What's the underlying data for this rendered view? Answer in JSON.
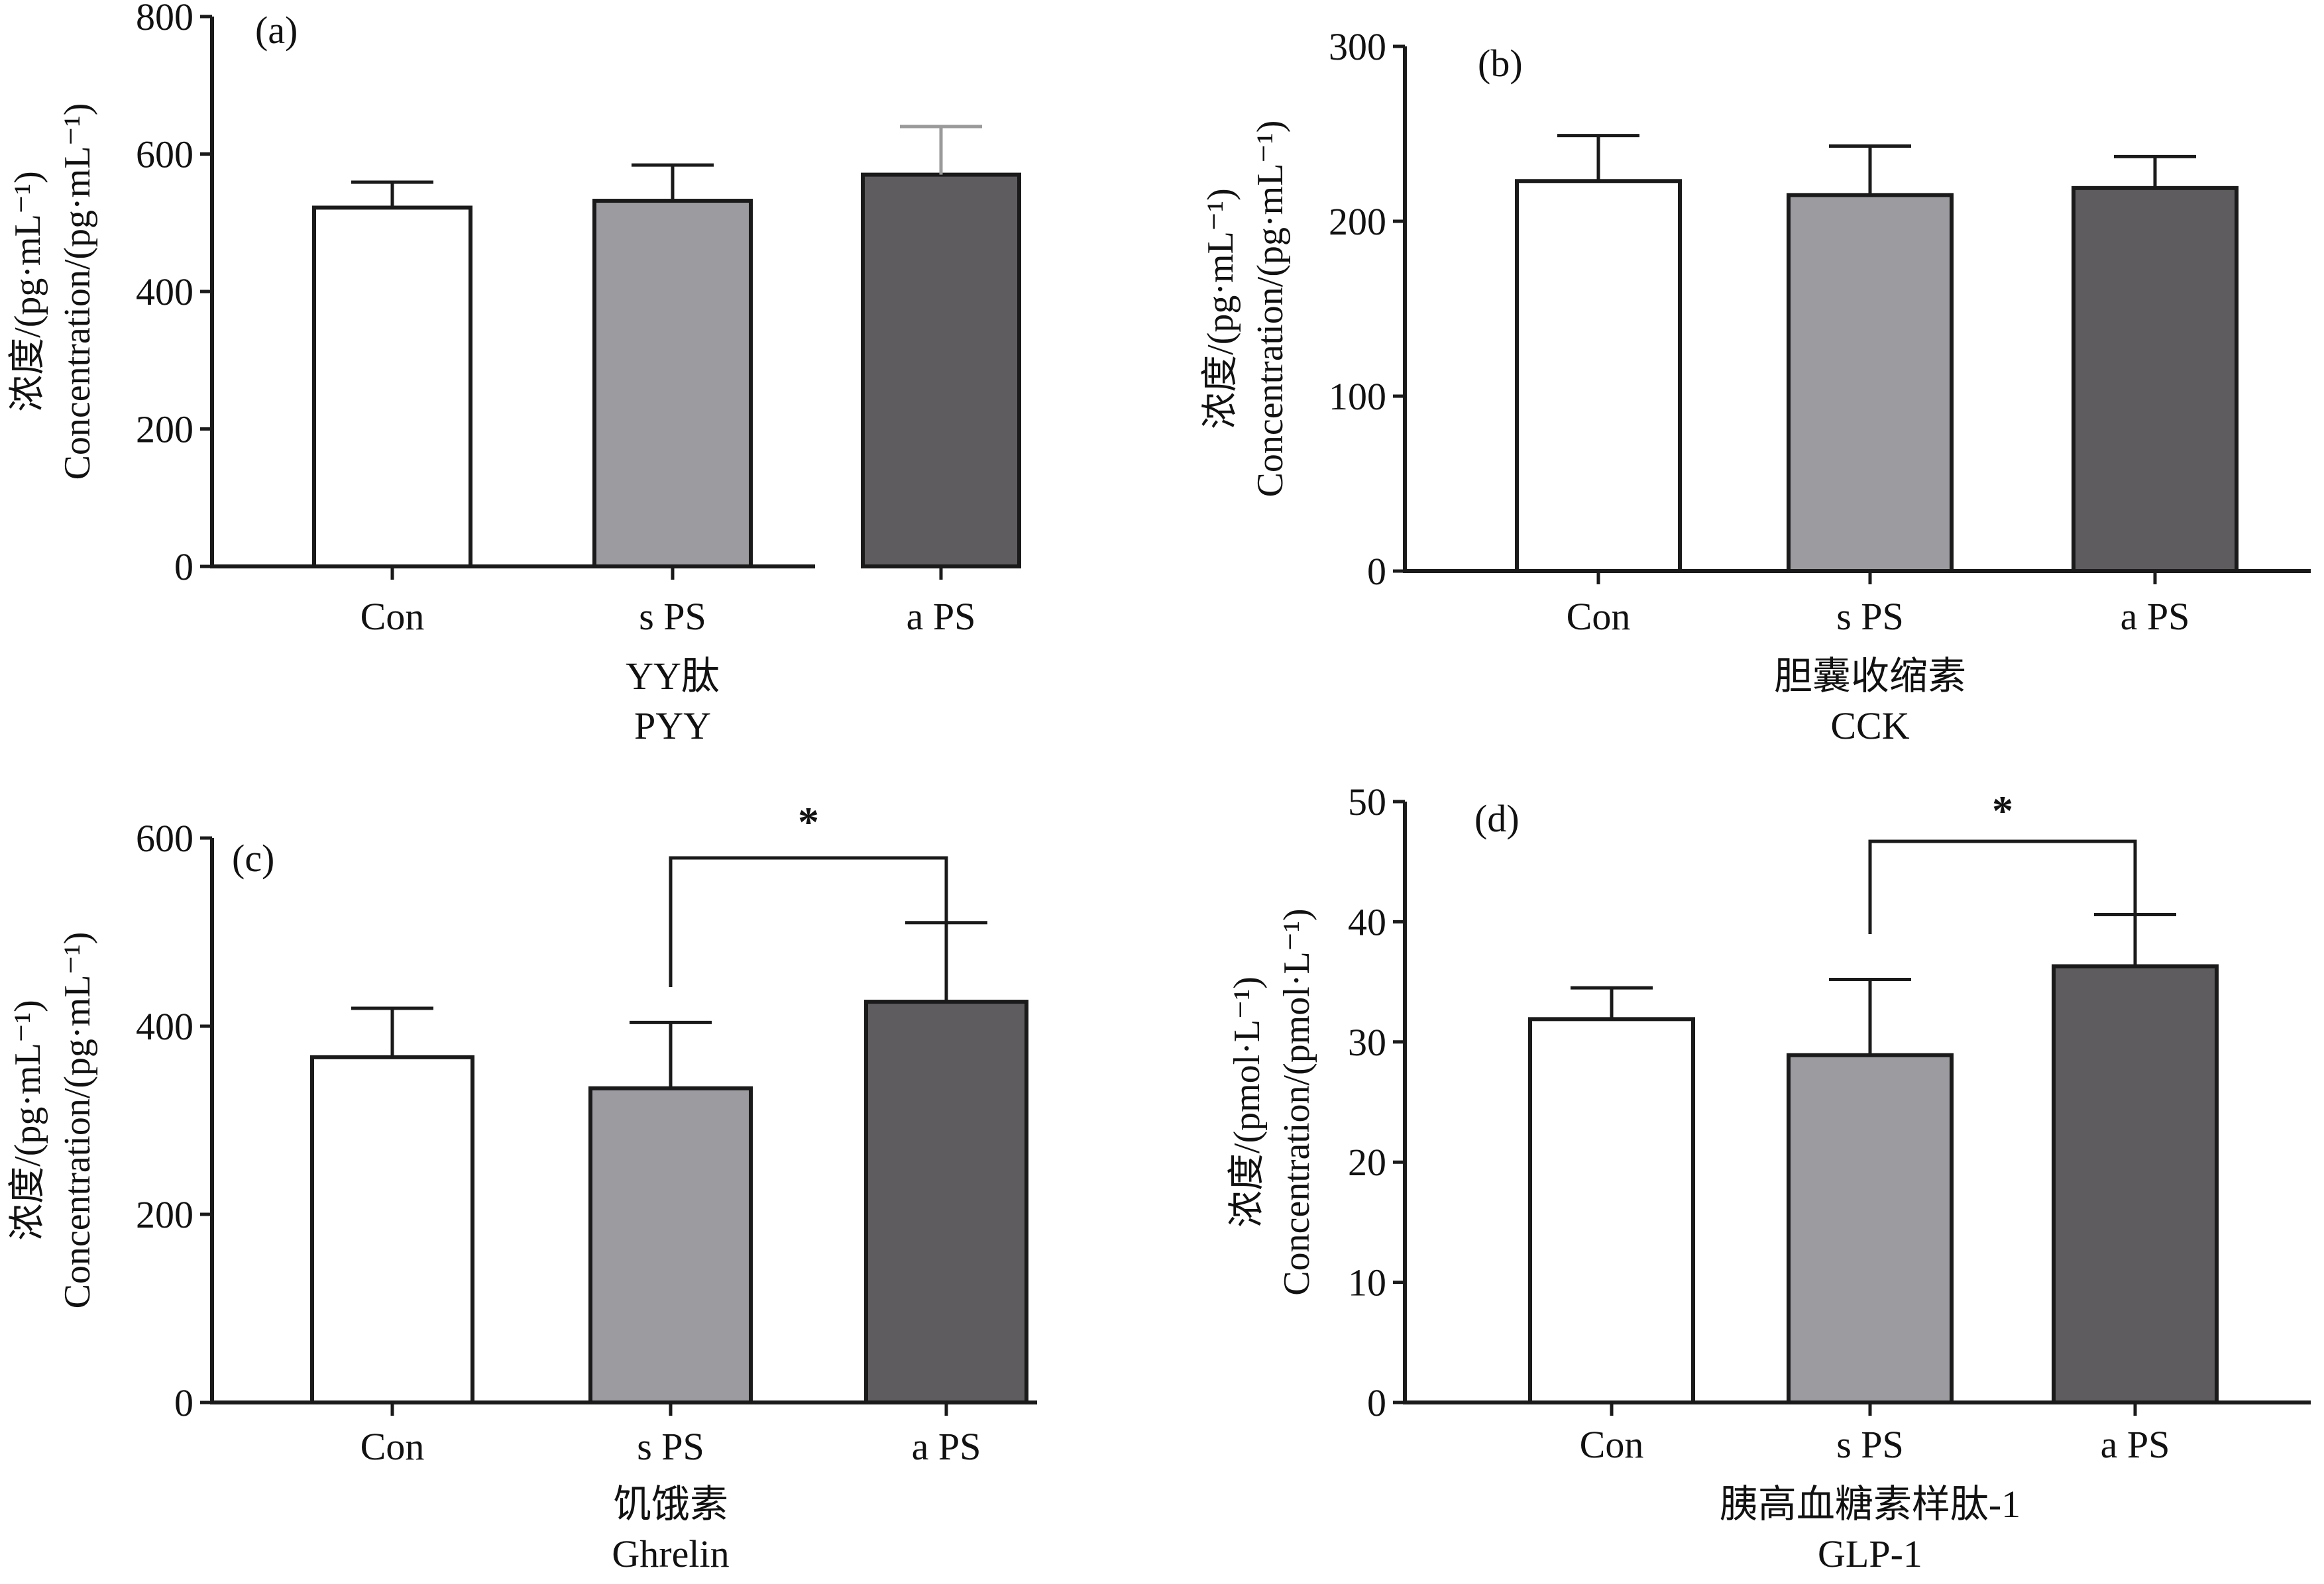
{
  "colors": {
    "axis": "#1a1a1a",
    "con": "#ffffff",
    "sps": "#9c9ca0",
    "aps": "#5e5c5f",
    "sps_errorbar_a": "#9a9a9a"
  },
  "chart_data": [
    {
      "type": "bar",
      "panel_label": "(a)",
      "categories": [
        "Con",
        "s PS",
        "a PS"
      ],
      "values": [
        522,
        532,
        570
      ],
      "errors": [
        37,
        52,
        70
      ],
      "ylim": [
        0,
        800
      ],
      "yticks": [
        "0",
        "200",
        "400",
        "600",
        "800"
      ],
      "ylabel_cn": "浓度/(pg·mL⁻¹)",
      "ylabel_en": "Concentration/(pg·mL⁻¹)",
      "xlabel_cn": "YY肽",
      "xlabel_en": "PYY",
      "significance": []
    },
    {
      "type": "bar",
      "panel_label": "(b)",
      "categories": [
        "Con",
        "s PS",
        "a PS"
      ],
      "values": [
        223,
        215,
        219
      ],
      "errors": [
        26,
        28,
        18
      ],
      "ylim": [
        0,
        300
      ],
      "yticks": [
        "0",
        "100",
        "200",
        "300"
      ],
      "ylabel_cn": "浓度/(pg·mL⁻¹)",
      "ylabel_en": "Concentration/(pg·mL⁻¹)",
      "xlabel_cn": "胆囊收缩素",
      "xlabel_en": "CCK",
      "significance": []
    },
    {
      "type": "bar",
      "panel_label": "(c)",
      "categories": [
        "Con",
        "s PS",
        "a PS"
      ],
      "values": [
        367,
        334,
        426
      ],
      "errors": [
        52,
        70,
        84
      ],
      "ylim": [
        0,
        600
      ],
      "yticks": [
        "0",
        "200",
        "400",
        "600"
      ],
      "ylabel_cn": "浓度/(pg·mL⁻¹)",
      "ylabel_en": "Concentration/(pg·mL⁻¹)",
      "xlabel_cn": "饥饿素",
      "xlabel_en": "Ghrelin",
      "significance": [
        {
          "from": 1,
          "to": 2,
          "label": "*"
        }
      ]
    },
    {
      "type": "bar",
      "panel_label": "(d)",
      "categories": [
        "Con",
        "s PS",
        "a PS"
      ],
      "values": [
        31.9,
        28.9,
        36.3
      ],
      "errors": [
        2.6,
        6.3,
        4.3
      ],
      "ylim": [
        0,
        50
      ],
      "yticks": [
        "0",
        "10",
        "20",
        "30",
        "40",
        "50"
      ],
      "ylabel_cn": "浓度/(pmol·L⁻¹)",
      "ylabel_en": "Concentration/(pmol·L⁻¹)",
      "xlabel_cn": "胰高血糖素样肽-1",
      "xlabel_en": "GLP-1",
      "significance": [
        {
          "from": 1,
          "to": 2,
          "label": "*"
        }
      ]
    }
  ]
}
